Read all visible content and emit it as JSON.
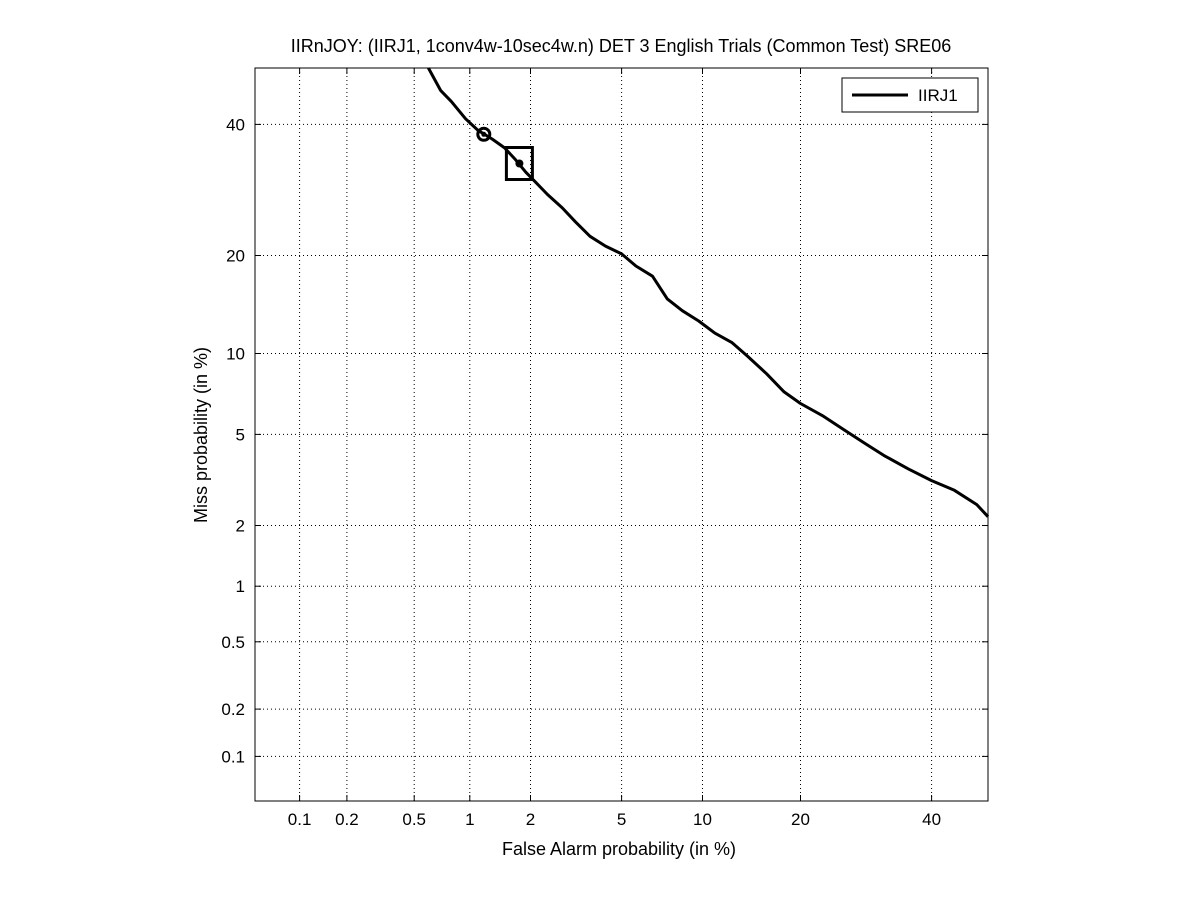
{
  "chart_data": {
    "type": "line",
    "scale": "normal-deviate",
    "title": "IIRnJOY: (IIRJ1, 1conv4w-10sec4w.n) DET 3 English Trials (Common Test) SRE06",
    "xlabel": "False Alarm probability (in %)",
    "ylabel": "Miss probability (in %)",
    "xlim": [
      0.05,
      50
    ],
    "ylim": [
      0.05,
      50
    ],
    "x_ticks": [
      0.1,
      0.2,
      0.5,
      1,
      2,
      5,
      10,
      20,
      40
    ],
    "x_tick_labels": [
      "0.1",
      "0.2",
      "0.5",
      "1",
      "2",
      "5",
      "10",
      "20",
      "40"
    ],
    "y_ticks": [
      0.1,
      0.2,
      0.5,
      1,
      2,
      5,
      10,
      20,
      40
    ],
    "y_tick_labels": [
      "0.1",
      "0.2",
      "0.5",
      "1",
      "2",
      "5",
      "10",
      "20",
      "40"
    ],
    "grid": true,
    "legend_position": "top-right",
    "series": [
      {
        "name": "IIRJ1",
        "color": "#000000",
        "x": [
          0.6,
          0.7,
          0.8,
          0.95,
          1.1,
          1.3,
          1.5,
          1.7,
          1.9,
          2.1,
          2.4,
          2.8,
          3.2,
          3.7,
          4.3,
          5.0,
          5.7,
          6.6,
          7.5,
          8.5,
          9.7,
          11,
          12.5,
          14,
          16,
          18,
          20,
          23,
          26,
          29,
          32,
          36,
          40,
          44,
          48,
          50
        ],
        "y": [
          50,
          46,
          44,
          41,
          39,
          37.5,
          36,
          34,
          32,
          30.5,
          28.5,
          26.5,
          24.5,
          22.5,
          21.2,
          20.2,
          18.7,
          17.5,
          15,
          13.8,
          12.8,
          11.7,
          10.9,
          9.8,
          8.5,
          7.3,
          6.6,
          5.9,
          5.2,
          4.6,
          4.1,
          3.6,
          3.2,
          2.9,
          2.5,
          2.2
        ]
      }
    ],
    "markers": [
      {
        "shape": "circle",
        "x": 1.18,
        "y": 38.3
      },
      {
        "shape": "square",
        "x": 1.77,
        "y": 33.4
      }
    ]
  }
}
